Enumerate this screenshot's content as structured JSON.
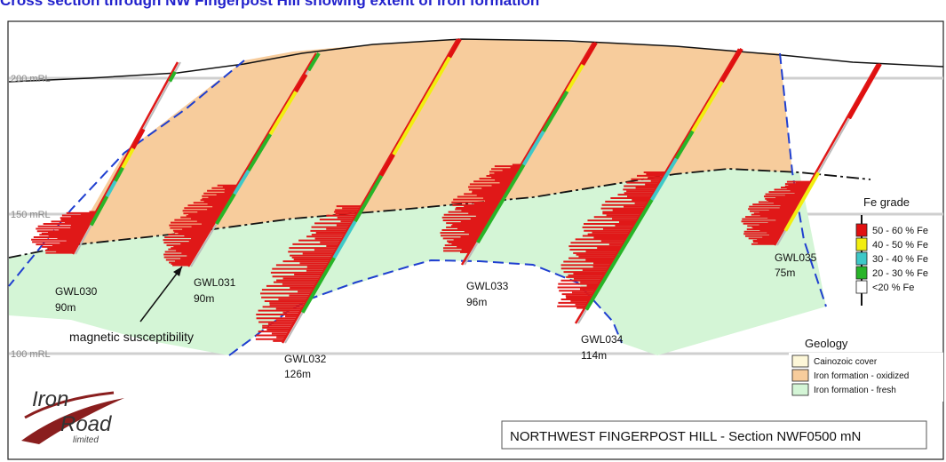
{
  "page_title": "Cross section through NW Fingerpost Hill showing extent of iron formation",
  "rl_labels": [
    "200 mRL",
    "150 mRL",
    "100 mRL"
  ],
  "holes": [
    {
      "id": "GWL030",
      "depth": "90m"
    },
    {
      "id": "GWL031",
      "depth": "90m"
    },
    {
      "id": "GWL032",
      "depth": "126m"
    },
    {
      "id": "GWL033",
      "depth": "96m"
    },
    {
      "id": "GWL034",
      "depth": "114m"
    },
    {
      "id": "GWL035",
      "depth": "75m"
    }
  ],
  "annotation": "magnetic susceptibility",
  "fe_legend": {
    "title": "Fe grade",
    "items": [
      {
        "label": "50 - 60 % Fe",
        "color": "#e01010"
      },
      {
        "label": "40 - 50 % Fe",
        "color": "#f2ee10"
      },
      {
        "label": "30 - 40 % Fe",
        "color": "#3ec8c8"
      },
      {
        "label": "20 - 30 % Fe",
        "color": "#28b428"
      },
      {
        "label": "<20 % Fe",
        "color": "#ffffff"
      }
    ]
  },
  "geology_legend": {
    "title": "Geology",
    "items": [
      {
        "label": "Cainozoic cover",
        "color": "#fdf7d8"
      },
      {
        "label": "Iron formation - oxidized",
        "color": "#f7cc9c"
      },
      {
        "label": "Iron formation - fresh",
        "color": "#d4f5d6"
      }
    ]
  },
  "logo": {
    "line1": "Iron",
    "line2": "Road",
    "line3": "limited"
  },
  "section_title": "NORTHWEST FINGERPOST HILL - Section  NWF0500 mN",
  "colors": {
    "oxidized": "#f7cc9c",
    "fresh": "#d4f5d6",
    "boundary": "#1f3fd0",
    "mag": "#e01818",
    "rl_line": "#cccccc",
    "logo": "#8a1e1e"
  }
}
